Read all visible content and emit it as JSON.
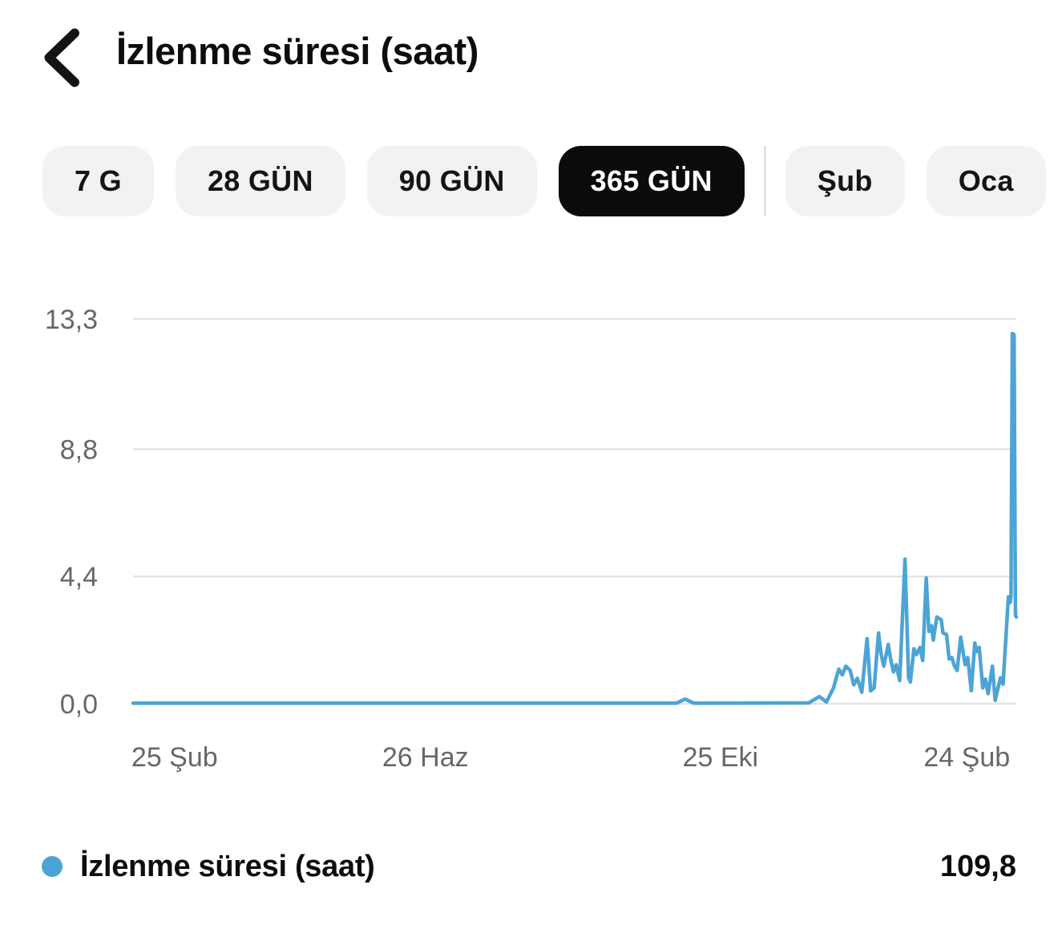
{
  "header": {
    "title": "İzlenme süresi (saat)"
  },
  "filters": {
    "periods": [
      {
        "label": "7 G",
        "selected": false
      },
      {
        "label": "28 GÜN",
        "selected": false
      },
      {
        "label": "90 GÜN",
        "selected": false
      },
      {
        "label": "365 GÜN",
        "selected": true
      }
    ],
    "months": [
      {
        "label": "Şub",
        "selected": false
      },
      {
        "label": "Oca",
        "selected": false
      }
    ]
  },
  "chart_data": {
    "type": "line",
    "title": "İzlenme süresi (saat)",
    "unit": "saat",
    "total": "109,8",
    "ylim": [
      0,
      13.3
    ],
    "grid": true,
    "legend_position": "bottom",
    "y_ticks": [
      {
        "label": "13,3",
        "value": 13.3
      },
      {
        "label": "8,8",
        "value": 8.8
      },
      {
        "label": "4,4",
        "value": 4.4
      },
      {
        "label": "0,0",
        "value": 0
      }
    ],
    "x_ticks": [
      {
        "label": "25 Şub",
        "pos": 0.047
      },
      {
        "label": "26 Haz",
        "pos": 0.331
      },
      {
        "label": "25 Eki",
        "pos": 0.665
      },
      {
        "label": "24 Şub",
        "pos": 0.944
      }
    ],
    "line_color": "#4CA4D6",
    "grid_color": "#E4E4E4",
    "axis_text_color": "#676767",
    "series": [
      {
        "name": "İzlenme süresi (saat)",
        "points": [
          [
            0.0,
            0.02
          ],
          [
            0.615,
            0.02
          ],
          [
            0.625,
            0.16
          ],
          [
            0.635,
            0.02
          ],
          [
            0.765,
            0.03
          ],
          [
            0.777,
            0.25
          ],
          [
            0.785,
            0.06
          ],
          [
            0.793,
            0.55
          ],
          [
            0.799,
            1.2
          ],
          [
            0.803,
            1.0
          ],
          [
            0.807,
            1.3
          ],
          [
            0.812,
            1.15
          ],
          [
            0.816,
            0.65
          ],
          [
            0.82,
            0.88
          ],
          [
            0.825,
            0.4
          ],
          [
            0.831,
            2.25
          ],
          [
            0.835,
            0.45
          ],
          [
            0.839,
            0.55
          ],
          [
            0.844,
            2.45
          ],
          [
            0.847,
            1.7
          ],
          [
            0.85,
            1.3
          ],
          [
            0.855,
            2.05
          ],
          [
            0.858,
            1.5
          ],
          [
            0.861,
            1.1
          ],
          [
            0.864,
            1.35
          ],
          [
            0.868,
            0.8
          ],
          [
            0.874,
            5.0
          ],
          [
            0.878,
            0.9
          ],
          [
            0.88,
            0.75
          ],
          [
            0.884,
            1.9
          ],
          [
            0.887,
            1.7
          ],
          [
            0.891,
            1.95
          ],
          [
            0.894,
            1.5
          ],
          [
            0.898,
            4.35
          ],
          [
            0.901,
            2.5
          ],
          [
            0.904,
            2.7
          ],
          [
            0.906,
            2.2
          ],
          [
            0.91,
            3.0
          ],
          [
            0.915,
            2.9
          ],
          [
            0.917,
            2.45
          ],
          [
            0.921,
            2.4
          ],
          [
            0.924,
            1.55
          ],
          [
            0.927,
            1.6
          ],
          [
            0.93,
            1.3
          ],
          [
            0.933,
            1.15
          ],
          [
            0.937,
            2.3
          ],
          [
            0.942,
            1.35
          ],
          [
            0.945,
            1.6
          ],
          [
            0.949,
            0.45
          ],
          [
            0.953,
            2.1
          ],
          [
            0.955,
            1.8
          ],
          [
            0.958,
            1.95
          ],
          [
            0.962,
            0.55
          ],
          [
            0.965,
            0.85
          ],
          [
            0.968,
            0.35
          ],
          [
            0.973,
            1.3
          ],
          [
            0.976,
            0.12
          ],
          [
            0.982,
            0.9
          ],
          [
            0.985,
            0.68
          ],
          [
            0.988,
            2.2
          ],
          [
            0.991,
            3.7
          ],
          [
            0.993,
            3.5
          ],
          [
            0.994,
            3.75
          ],
          [
            0.9955,
            12.8
          ],
          [
            0.9975,
            12.75
          ],
          [
            0.999,
            3.05
          ],
          [
            1.0,
            3.0
          ]
        ]
      }
    ]
  },
  "legend": {
    "label": "İzlenme süresi (saat)",
    "value": "109,8"
  }
}
